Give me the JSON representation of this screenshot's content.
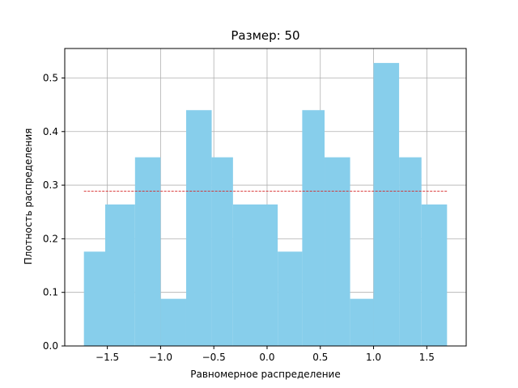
{
  "chart_data": {
    "type": "bar",
    "title": "Размер: 50",
    "xlabel": "Равномерное распределение",
    "ylabel": "Плотность распределения",
    "xlim": [
      -1.9,
      1.87
    ],
    "ylim": [
      0.0,
      0.555
    ],
    "grid": true,
    "bar_color": "#87CEEB",
    "reference_line": {
      "value": 0.2887,
      "x_range": [
        -1.72,
        1.69
      ],
      "color": "#d62728",
      "style": "dashed"
    },
    "bins": [
      {
        "x0": -1.72,
        "x1": -1.52,
        "value": 0.176
      },
      {
        "x0": -1.52,
        "x1": -1.24,
        "value": 0.264
      },
      {
        "x0": -1.24,
        "x1": -1.0,
        "value": 0.352
      },
      {
        "x0": -1.0,
        "x1": -0.76,
        "value": 0.088
      },
      {
        "x0": -0.76,
        "x1": -0.52,
        "value": 0.44
      },
      {
        "x0": -0.52,
        "x1": -0.32,
        "value": 0.352
      },
      {
        "x0": -0.32,
        "x1": 0.1,
        "value": 0.264
      },
      {
        "x0": 0.1,
        "x1": 0.33,
        "value": 0.176
      },
      {
        "x0": 0.33,
        "x1": 0.54,
        "value": 0.44
      },
      {
        "x0": 0.54,
        "x1": 0.78,
        "value": 0.352
      },
      {
        "x0": 0.78,
        "x1": 1.0,
        "value": 0.088
      },
      {
        "x0": 1.0,
        "x1": 1.24,
        "value": 0.528
      },
      {
        "x0": 1.24,
        "x1": 1.45,
        "value": 0.352
      },
      {
        "x0": 1.45,
        "x1": 1.69,
        "value": 0.264
      }
    ],
    "x_ticks": [
      {
        "value": -1.5,
        "label": "−1.5"
      },
      {
        "value": -1.0,
        "label": "−1.0"
      },
      {
        "value": -0.5,
        "label": "−0.5"
      },
      {
        "value": 0.0,
        "label": "0.0"
      },
      {
        "value": 0.5,
        "label": "0.5"
      },
      {
        "value": 1.0,
        "label": "1.0"
      },
      {
        "value": 1.5,
        "label": "1.5"
      }
    ],
    "y_ticks": [
      {
        "value": 0.0,
        "label": "0.0"
      },
      {
        "value": 0.1,
        "label": "0.1"
      },
      {
        "value": 0.2,
        "label": "0.2"
      },
      {
        "value": 0.3,
        "label": "0.3"
      },
      {
        "value": 0.4,
        "label": "0.4"
      },
      {
        "value": 0.5,
        "label": "0.5"
      }
    ]
  }
}
